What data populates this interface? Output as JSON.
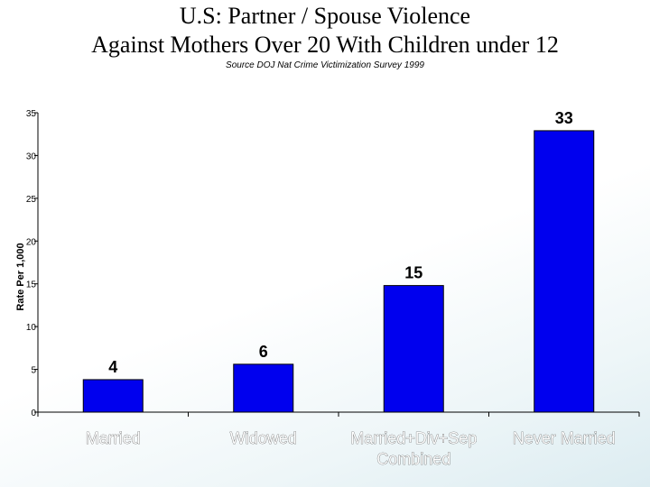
{
  "chart_data": {
    "type": "bar",
    "title_line1": "U.S: Partner / Spouse Violence",
    "title_line2": "Against Mothers Over 20 With Children under 12",
    "subtitle": "Source DOJ Nat Crime Victimization Survey 1999",
    "ylabel": "Rate Per 1,000",
    "xlabel": "",
    "ylim": [
      0,
      35
    ],
    "yticks": [
      0,
      5,
      10,
      15,
      20,
      25,
      30,
      35
    ],
    "categories": [
      [
        "Married"
      ],
      [
        "Widowed"
      ],
      [
        "Married+Div+Sep",
        "Combined"
      ],
      [
        "Never Married"
      ]
    ],
    "values": [
      4,
      6,
      15,
      33
    ],
    "bar_values": [
      3.8,
      5.6,
      14.8,
      32.9
    ],
    "bar_color": "#0000ee",
    "grid": false,
    "legend": "none"
  }
}
